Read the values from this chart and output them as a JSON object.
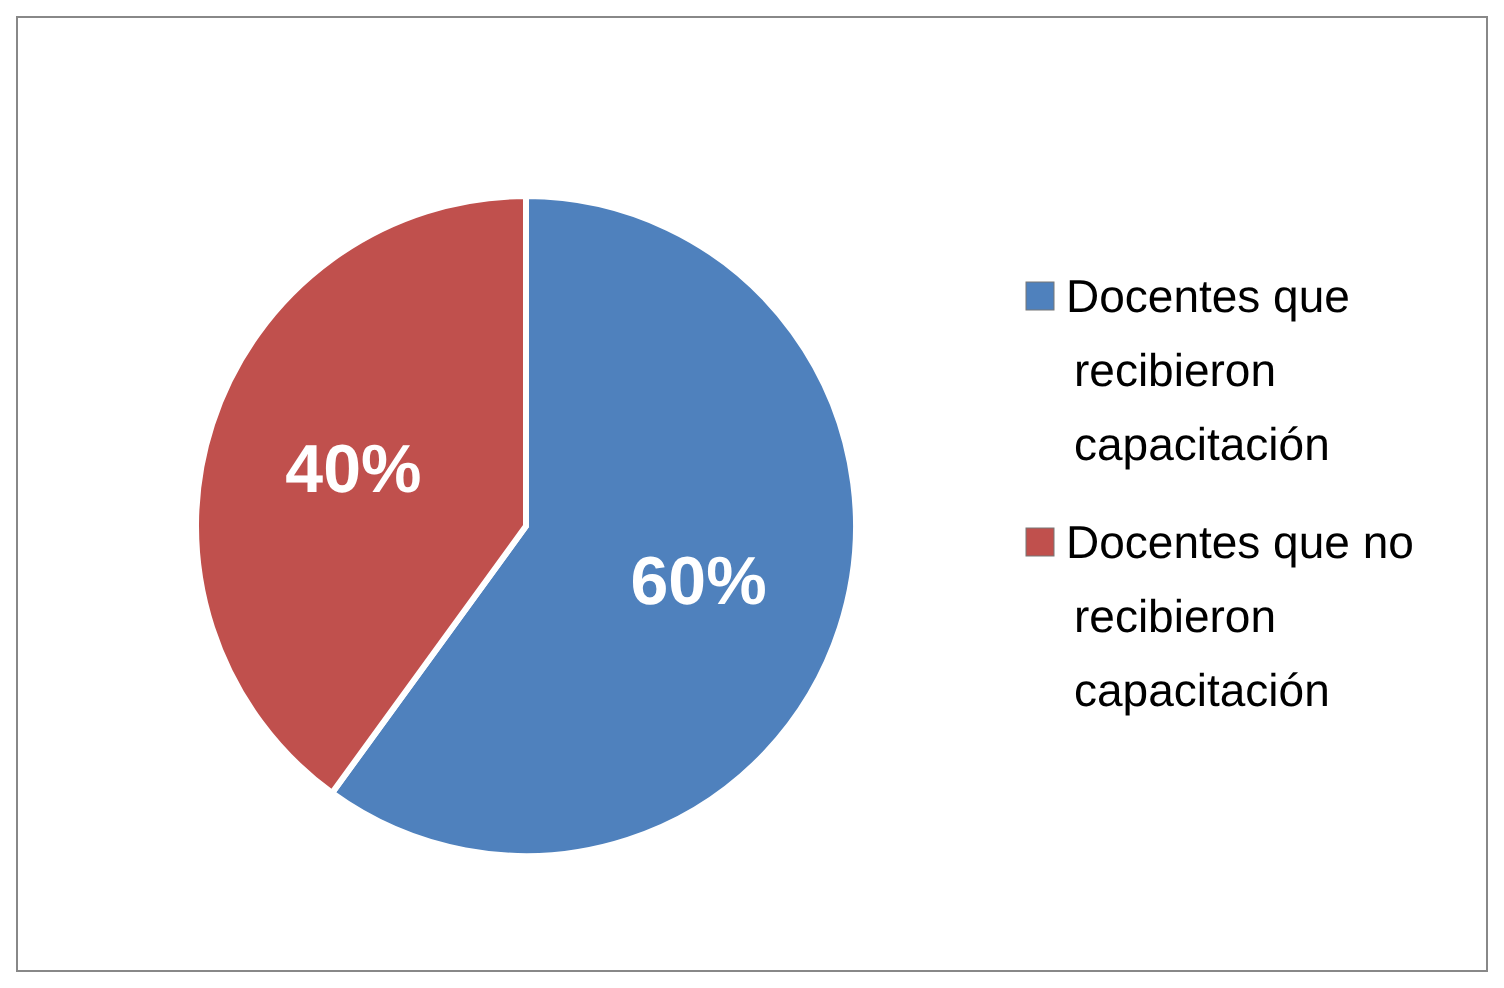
{
  "chart_data": {
    "type": "pie",
    "categories": [
      "Docentes que recibieron capacitación",
      "Docentes que no recibieron capacitación"
    ],
    "values": [
      60,
      40
    ],
    "colors": [
      "#4f81bd",
      "#c0504d"
    ],
    "value_labels": [
      "60%",
      "40%"
    ],
    "legend": "right"
  }
}
